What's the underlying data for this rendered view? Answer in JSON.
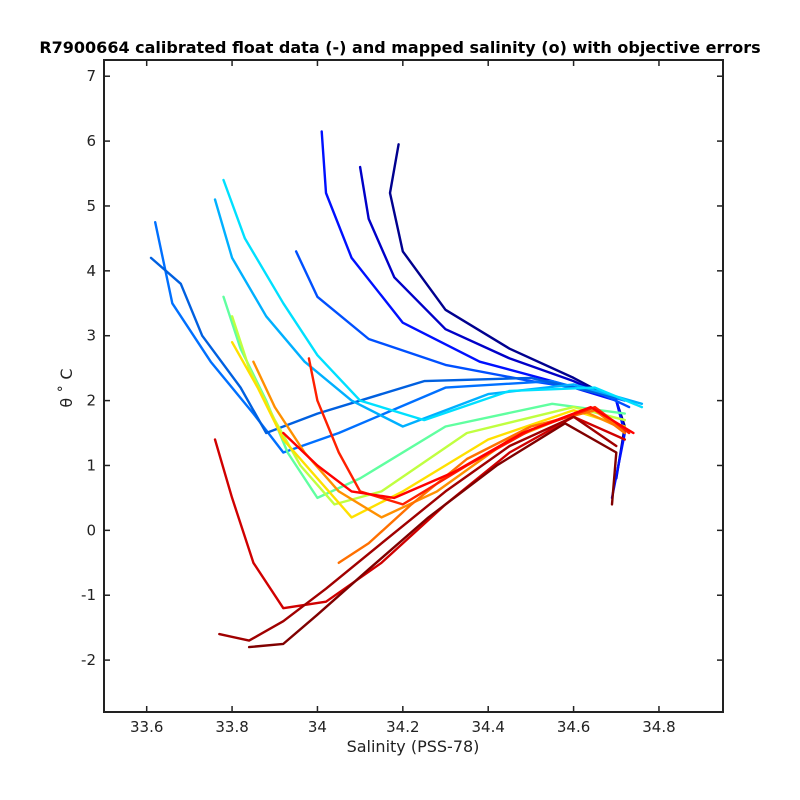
{
  "chart_data": {
    "type": "line",
    "title": "R7900664 calibrated float data (-) and mapped salinity (o) with objective errors",
    "xlabel": "Salinity (PSS-78)",
    "ylabel": "θ ˚ C",
    "xlim": [
      33.5,
      34.95
    ],
    "ylim": [
      -2.8,
      7.25
    ],
    "xticks": [
      "33.6",
      "33.8",
      "34",
      "34.2",
      "34.4",
      "34.6",
      "34.8"
    ],
    "yticks": [
      "-2",
      "-1",
      "0",
      "1",
      "2",
      "3",
      "4",
      "5",
      "6",
      "7"
    ],
    "colormap": [
      "#00008f",
      "#0000ff",
      "#0080ff",
      "#00ffff",
      "#80ff80",
      "#ffff00",
      "#ff8000",
      "#ff0000",
      "#800000"
    ],
    "grid": false,
    "series": [
      {
        "color": "#00008f",
        "points": [
          [
            34.19,
            5.95
          ],
          [
            34.17,
            5.2
          ],
          [
            34.2,
            4.3
          ],
          [
            34.3,
            3.4
          ],
          [
            34.45,
            2.8
          ],
          [
            34.6,
            2.35
          ],
          [
            34.7,
            2.0
          ],
          [
            34.72,
            1.6
          ],
          [
            34.7,
            0.8
          ]
        ]
      },
      {
        "color": "#0000c8",
        "points": [
          [
            34.1,
            5.6
          ],
          [
            34.12,
            4.8
          ],
          [
            34.18,
            3.9
          ],
          [
            34.3,
            3.1
          ],
          [
            34.45,
            2.65
          ],
          [
            34.6,
            2.3
          ],
          [
            34.7,
            2.0
          ],
          [
            34.72,
            1.5
          ]
        ]
      },
      {
        "color": "#0010ff",
        "points": [
          [
            34.01,
            6.15
          ],
          [
            34.02,
            5.2
          ],
          [
            34.08,
            4.2
          ],
          [
            34.2,
            3.2
          ],
          [
            34.38,
            2.6
          ],
          [
            34.55,
            2.3
          ],
          [
            34.7,
            2.0
          ],
          [
            34.72,
            1.5
          ],
          [
            34.69,
            0.5
          ]
        ]
      },
      {
        "color": "#0050ff",
        "points": [
          [
            33.95,
            4.3
          ],
          [
            34.0,
            3.6
          ],
          [
            34.12,
            2.95
          ],
          [
            34.3,
            2.55
          ],
          [
            34.5,
            2.3
          ],
          [
            34.65,
            2.15
          ],
          [
            34.73,
            1.9
          ]
        ]
      },
      {
        "color": "#0070ff",
        "points": [
          [
            33.62,
            4.75
          ],
          [
            33.66,
            3.5
          ],
          [
            33.75,
            2.6
          ],
          [
            33.85,
            1.8
          ],
          [
            33.92,
            1.2
          ],
          [
            34.05,
            1.5
          ],
          [
            34.3,
            2.2
          ],
          [
            34.55,
            2.3
          ],
          [
            34.72,
            2.0
          ]
        ]
      },
      {
        "color": "#0060e0",
        "points": [
          [
            33.61,
            4.2
          ],
          [
            33.68,
            3.8
          ],
          [
            33.73,
            3.0
          ],
          [
            33.82,
            2.2
          ],
          [
            33.88,
            1.5
          ],
          [
            34.0,
            1.8
          ],
          [
            34.25,
            2.3
          ],
          [
            34.5,
            2.35
          ],
          [
            34.7,
            2.05
          ]
        ]
      },
      {
        "color": "#00b0ff",
        "points": [
          [
            33.76,
            5.1
          ],
          [
            33.8,
            4.2
          ],
          [
            33.88,
            3.3
          ],
          [
            33.97,
            2.6
          ],
          [
            34.08,
            2.0
          ],
          [
            34.2,
            1.6
          ],
          [
            34.4,
            2.1
          ],
          [
            34.6,
            2.25
          ],
          [
            34.76,
            1.95
          ]
        ]
      },
      {
        "color": "#00e0ff",
        "points": [
          [
            33.78,
            5.4
          ],
          [
            33.83,
            4.5
          ],
          [
            33.92,
            3.5
          ],
          [
            34.0,
            2.7
          ],
          [
            34.1,
            2.0
          ],
          [
            34.25,
            1.7
          ],
          [
            34.45,
            2.15
          ],
          [
            34.65,
            2.2
          ],
          [
            34.76,
            1.9
          ]
        ]
      },
      {
        "color": "#60ffa0",
        "points": [
          [
            33.78,
            3.6
          ],
          [
            33.82,
            2.8
          ],
          [
            33.88,
            2.0
          ],
          [
            33.93,
            1.2
          ],
          [
            34.0,
            0.5
          ],
          [
            34.1,
            0.8
          ],
          [
            34.3,
            1.6
          ],
          [
            34.55,
            1.95
          ],
          [
            34.72,
            1.8
          ]
        ]
      },
      {
        "color": "#c0ff40",
        "points": [
          [
            33.8,
            3.3
          ],
          [
            33.84,
            2.5
          ],
          [
            33.9,
            1.7
          ],
          [
            33.96,
            1.0
          ],
          [
            34.04,
            0.4
          ],
          [
            34.15,
            0.6
          ],
          [
            34.35,
            1.5
          ],
          [
            34.6,
            1.9
          ],
          [
            34.72,
            1.7
          ]
        ]
      },
      {
        "color": "#ffe000",
        "points": [
          [
            33.8,
            2.9
          ],
          [
            33.86,
            2.2
          ],
          [
            33.92,
            1.4
          ],
          [
            34.0,
            0.8
          ],
          [
            34.08,
            0.2
          ],
          [
            34.2,
            0.6
          ],
          [
            34.4,
            1.4
          ],
          [
            34.6,
            1.85
          ],
          [
            34.72,
            1.6
          ]
        ]
      },
      {
        "color": "#ff9000",
        "points": [
          [
            33.85,
            2.6
          ],
          [
            33.9,
            1.9
          ],
          [
            33.97,
            1.2
          ],
          [
            34.05,
            0.6
          ],
          [
            34.15,
            0.2
          ],
          [
            34.28,
            0.6
          ],
          [
            34.45,
            1.4
          ],
          [
            34.62,
            1.85
          ],
          [
            34.72,
            1.55
          ]
        ]
      },
      {
        "color": "#ff7000",
        "points": [
          [
            34.05,
            -0.5
          ],
          [
            34.12,
            -0.2
          ],
          [
            34.22,
            0.4
          ],
          [
            34.35,
            1.1
          ],
          [
            34.5,
            1.6
          ],
          [
            34.65,
            1.85
          ],
          [
            34.72,
            1.5
          ]
        ]
      },
      {
        "color": "#ff2000",
        "points": [
          [
            33.98,
            2.65
          ],
          [
            34.0,
            2.0
          ],
          [
            34.05,
            1.2
          ],
          [
            34.1,
            0.6
          ],
          [
            34.2,
            0.4
          ],
          [
            34.35,
            1.0
          ],
          [
            34.5,
            1.55
          ],
          [
            34.65,
            1.9
          ],
          [
            34.73,
            1.5
          ]
        ]
      },
      {
        "color": "#ff0000",
        "points": [
          [
            33.92,
            1.5
          ],
          [
            34.0,
            1.0
          ],
          [
            34.08,
            0.6
          ],
          [
            34.18,
            0.5
          ],
          [
            34.32,
            0.9
          ],
          [
            34.48,
            1.5
          ],
          [
            34.64,
            1.9
          ],
          [
            34.74,
            1.5
          ]
        ]
      },
      {
        "color": "#d00000",
        "points": [
          [
            33.76,
            1.4
          ],
          [
            33.8,
            0.5
          ],
          [
            33.85,
            -0.5
          ],
          [
            33.92,
            -1.2
          ],
          [
            34.02,
            -1.1
          ],
          [
            34.15,
            -0.5
          ],
          [
            34.3,
            0.4
          ],
          [
            34.45,
            1.2
          ],
          [
            34.6,
            1.75
          ],
          [
            34.72,
            1.4
          ]
        ]
      },
      {
        "color": "#a00000",
        "points": [
          [
            33.77,
            -1.6
          ],
          [
            33.84,
            -1.7
          ],
          [
            33.92,
            -1.4
          ],
          [
            34.02,
            -0.9
          ],
          [
            34.15,
            -0.2
          ],
          [
            34.3,
            0.6
          ],
          [
            34.45,
            1.3
          ],
          [
            34.6,
            1.75
          ],
          [
            34.7,
            1.3
          ]
        ]
      },
      {
        "color": "#800000",
        "points": [
          [
            33.84,
            -1.8
          ],
          [
            33.92,
            -1.75
          ],
          [
            34.0,
            -1.3
          ],
          [
            34.12,
            -0.6
          ],
          [
            34.26,
            0.2
          ],
          [
            34.42,
            1.0
          ],
          [
            34.58,
            1.65
          ],
          [
            34.7,
            1.2
          ],
          [
            34.69,
            0.4
          ]
        ]
      }
    ]
  }
}
